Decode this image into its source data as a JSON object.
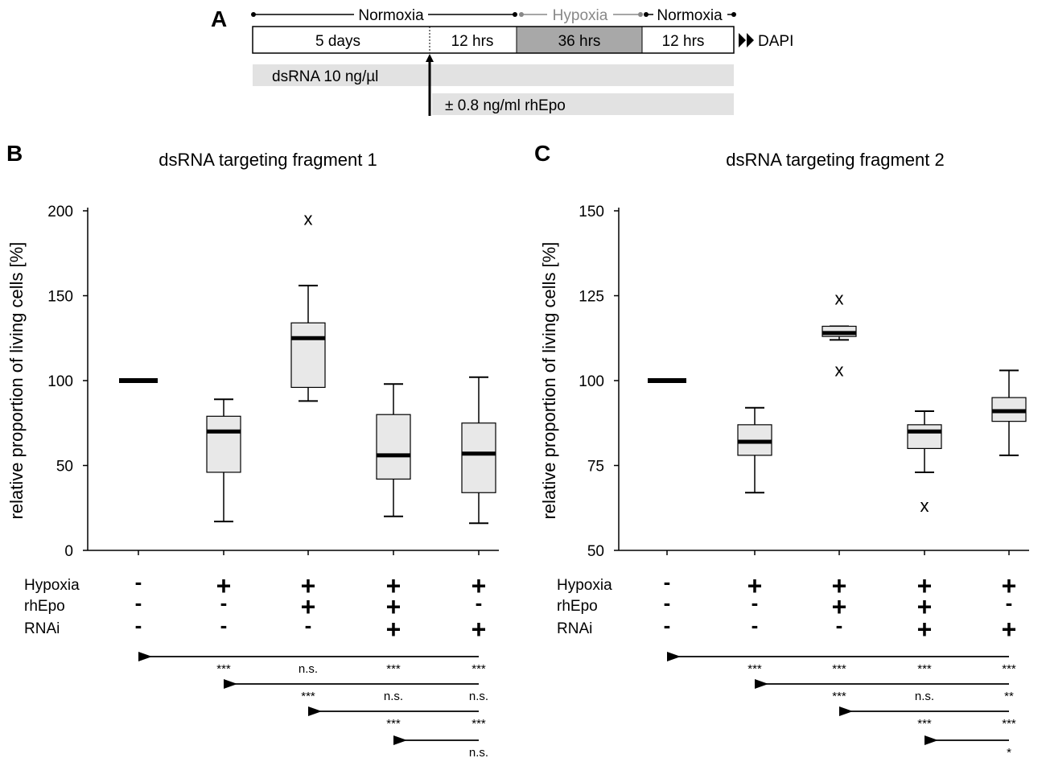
{
  "panel_a": {
    "label": "A",
    "phases": [
      "Normoxia",
      "Hypoxia",
      "Normoxia"
    ],
    "segments": [
      "5 days",
      "12 hrs",
      "36 hrs",
      "12 hrs"
    ],
    "end_label": "DAPI",
    "treatments": [
      "dsRNA 10 ng/µl",
      "± 0.8 ng/ml rhEpo"
    ],
    "colors": {
      "hypoxia_fill": "#a8a8a8",
      "hypoxia_text": "#888888",
      "treatment_fill": "#e2e2e2"
    }
  },
  "chart_data": [
    {
      "type": "box",
      "panel_label": "B",
      "title": "dsRNA targeting fragment 1",
      "ylabel": "relative proportion of living cells [%]",
      "ylim": [
        0,
        200
      ],
      "yticks": [
        0,
        50,
        100,
        150,
        200
      ],
      "conditions": [
        {
          "hypoxia": "-",
          "rhEpo": "-",
          "rnai": "-"
        },
        {
          "hypoxia": "+",
          "rhEpo": "-",
          "rnai": "-"
        },
        {
          "hypoxia": "+",
          "rhEpo": "+",
          "rnai": "-"
        },
        {
          "hypoxia": "+",
          "rhEpo": "+",
          "rnai": "+"
        },
        {
          "hypoxia": "+",
          "rhEpo": "-",
          "rnai": "+"
        }
      ],
      "boxes": [
        {
          "whisker_low": null,
          "q1": 100,
          "median": 100,
          "q3": 100,
          "whisker_high": null,
          "outliers": []
        },
        {
          "whisker_low": 17,
          "q1": 46,
          "median": 70,
          "q3": 79,
          "whisker_high": 89,
          "outliers": []
        },
        {
          "whisker_low": 88,
          "q1": 96,
          "median": 125,
          "q3": 134,
          "whisker_high": 156,
          "outliers": [
            195
          ]
        },
        {
          "whisker_low": 20,
          "q1": 42,
          "median": 56,
          "q3": 80,
          "whisker_high": 98,
          "outliers": []
        },
        {
          "whisker_low": 16,
          "q1": 34,
          "median": 57,
          "q3": 75,
          "whisker_high": 102,
          "outliers": []
        }
      ],
      "comparisons": [
        {
          "from": 0,
          "labels": [
            "***",
            "n.s.",
            "***",
            "***"
          ]
        },
        {
          "from": 1,
          "labels": [
            "***",
            "n.s.",
            "n.s."
          ]
        },
        {
          "from": 2,
          "labels": [
            "***",
            "***"
          ]
        },
        {
          "from": 3,
          "labels": [
            "n.s."
          ]
        }
      ]
    },
    {
      "type": "box",
      "panel_label": "C",
      "title": "dsRNA targeting fragment 2",
      "ylabel": "relative proportion of living cells [%]",
      "ylim": [
        50,
        150
      ],
      "yticks": [
        50,
        75,
        100,
        125,
        150
      ],
      "conditions": [
        {
          "hypoxia": "-",
          "rhEpo": "-",
          "rnai": "-"
        },
        {
          "hypoxia": "+",
          "rhEpo": "-",
          "rnai": "-"
        },
        {
          "hypoxia": "+",
          "rhEpo": "+",
          "rnai": "-"
        },
        {
          "hypoxia": "+",
          "rhEpo": "+",
          "rnai": "+"
        },
        {
          "hypoxia": "+",
          "rhEpo": "-",
          "rnai": "+"
        }
      ],
      "boxes": [
        {
          "whisker_low": null,
          "q1": 100,
          "median": 100,
          "q3": 100,
          "whisker_high": null,
          "outliers": []
        },
        {
          "whisker_low": 67,
          "q1": 78,
          "median": 82,
          "q3": 87,
          "whisker_high": 92,
          "outliers": []
        },
        {
          "whisker_low": 112,
          "q1": 113,
          "median": 114,
          "q3": 116,
          "whisker_high": 116,
          "outliers": [
            124,
            103
          ]
        },
        {
          "whisker_low": 73,
          "q1": 80,
          "median": 85,
          "q3": 87,
          "whisker_high": 91,
          "outliers": [
            63
          ]
        },
        {
          "whisker_low": 78,
          "q1": 88,
          "median": 91,
          "q3": 95,
          "whisker_high": 103,
          "outliers": []
        }
      ],
      "comparisons": [
        {
          "from": 0,
          "labels": [
            "***",
            "***",
            "***",
            "***"
          ]
        },
        {
          "from": 1,
          "labels": [
            "***",
            "n.s.",
            "**"
          ]
        },
        {
          "from": 2,
          "labels": [
            "***",
            "***"
          ]
        },
        {
          "from": 3,
          "labels": [
            "*"
          ]
        }
      ]
    }
  ],
  "factor_labels": [
    "Hypoxia",
    "rhEpo",
    "RNAi"
  ],
  "outlier_marker": "x"
}
